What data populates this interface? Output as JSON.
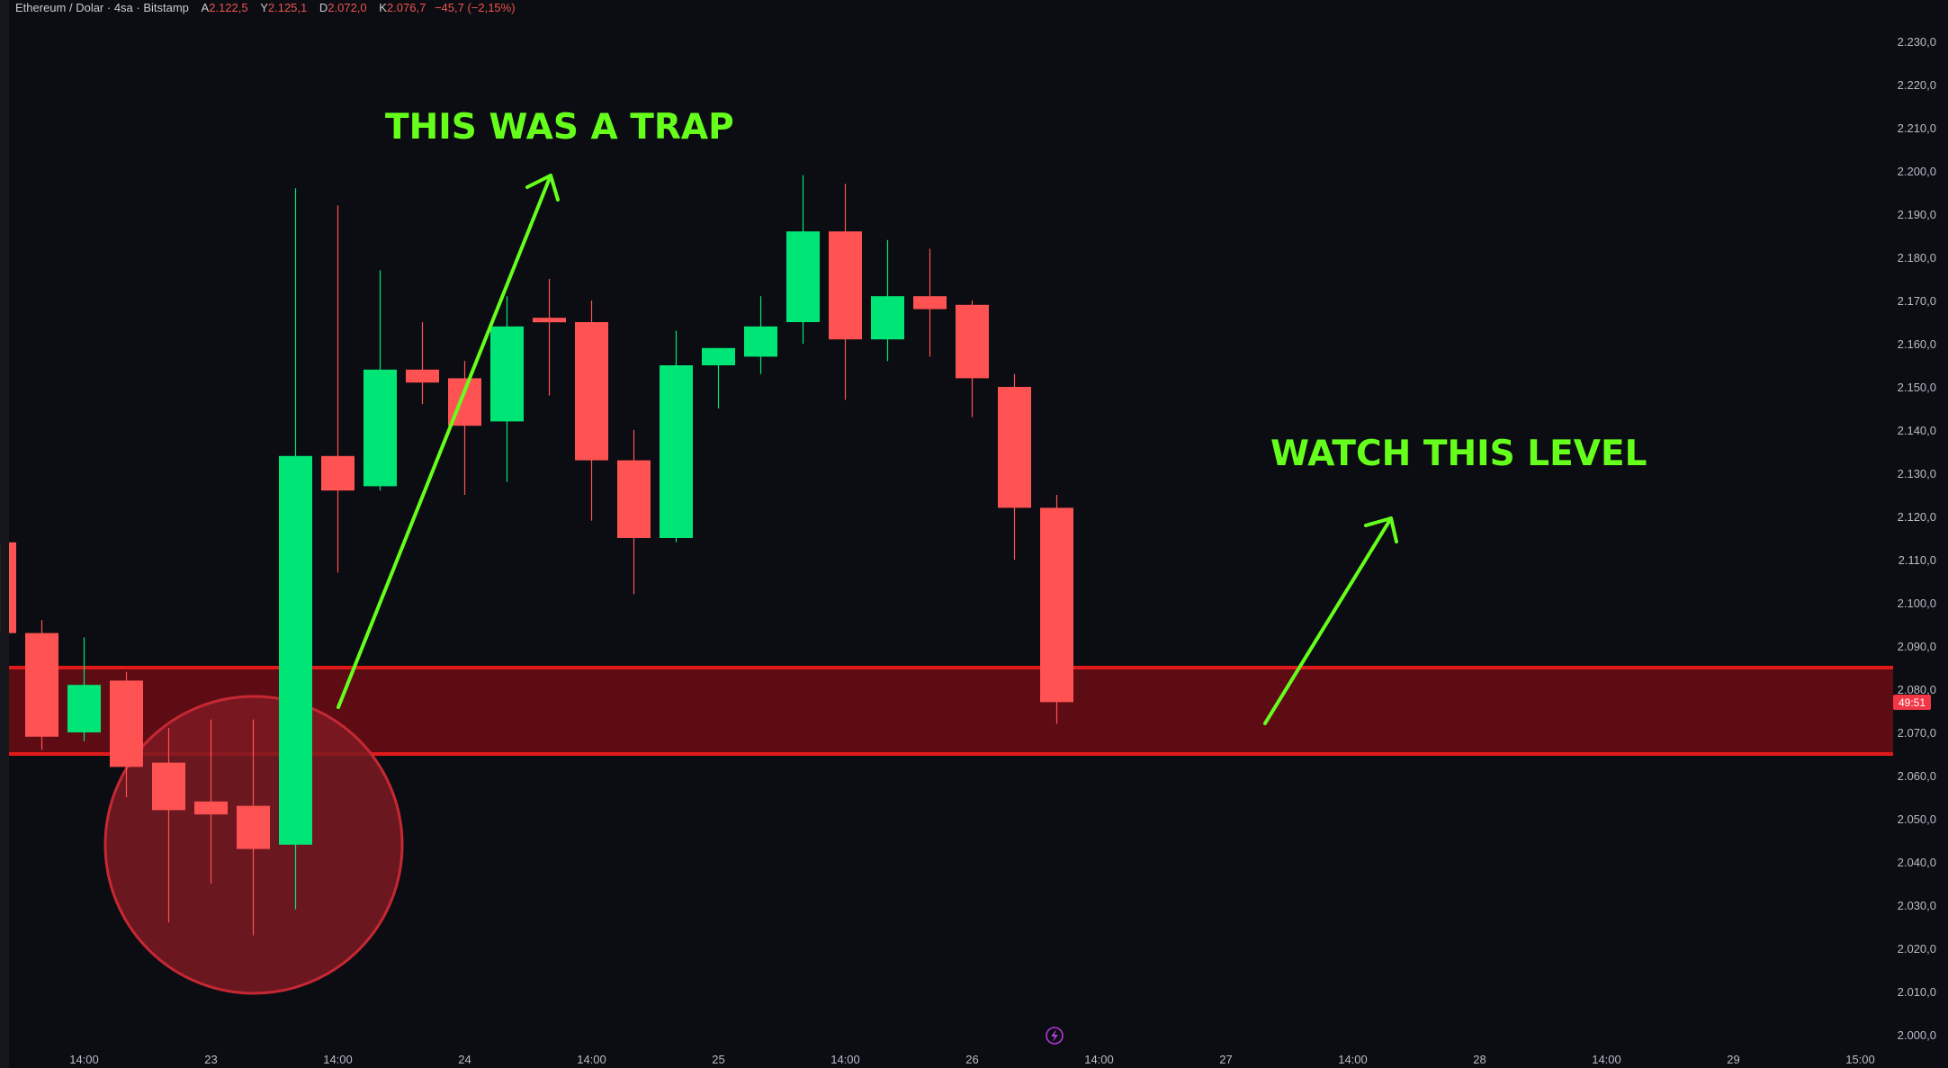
{
  "legend": {
    "symbol": "Ethereum / Dolar · 4sa · Bitstamp",
    "open_label": "A",
    "open": "2.122,5",
    "high_label": "Y",
    "high": "2.125,1",
    "low_label": "D",
    "low": "2.072,0",
    "close_label": "K",
    "close": "2.076,7",
    "change": "−45,7 (−2,15%)"
  },
  "price_badge": "49:51",
  "annotations": {
    "trap": "THIS WAS A TRAP",
    "watch": "WATCH THIS LEVEL"
  },
  "colors": {
    "up": "#00e676",
    "down": "#ff5252",
    "zone_fill": "#5e0c14",
    "zone_line": "#e01a1a",
    "annotation": "#66ff1c",
    "circle_fill": "#7c1a22",
    "circle_stroke": "#c62833",
    "badge": "#f23645",
    "energy_icon": "#b23ad7"
  },
  "chart_data": {
    "type": "candlestick",
    "symbol": "ETH/USD",
    "timeframe": "4h",
    "exchange": "Bitstamp",
    "ylim": [
      2000,
      2230
    ],
    "y_ticks": [
      "2.230,0",
      "2.220,0",
      "2.210,0",
      "2.200,0",
      "2.190,0",
      "2.180,0",
      "2.170,0",
      "2.160,0",
      "2.150,0",
      "2.140,0",
      "2.130,0",
      "2.120,0",
      "2.110,0",
      "2.100,0",
      "2.090,0",
      "2.080,0",
      "2.070,0",
      "2.060,0",
      "2.050,0",
      "2.040,0",
      "2.030,0",
      "2.020,0",
      "2.010,0",
      "2.000,0"
    ],
    "x_ticks": [
      {
        "label": "14:00",
        "bar": 1
      },
      {
        "label": "23",
        "bar": 4
      },
      {
        "label": "14:00",
        "bar": 7
      },
      {
        "label": "24",
        "bar": 10
      },
      {
        "label": "14:00",
        "bar": 13
      },
      {
        "label": "25",
        "bar": 16
      },
      {
        "label": "14:00",
        "bar": 19
      },
      {
        "label": "26",
        "bar": 22
      },
      {
        "label": "14:00",
        "bar": 25
      },
      {
        "label": "27",
        "bar": 28
      },
      {
        "label": "14:00",
        "bar": 31
      },
      {
        "label": "28",
        "bar": 34
      },
      {
        "label": "14:00",
        "bar": 37
      },
      {
        "label": "29",
        "bar": 40
      },
      {
        "label": "15:00",
        "bar": 43
      }
    ],
    "candles": [
      {
        "bar": -1,
        "open": 2114,
        "high": 2114,
        "low": 2093,
        "close": 2093
      },
      {
        "bar": 0,
        "open": 2093,
        "high": 2096,
        "low": 2066,
        "close": 2069
      },
      {
        "bar": 1,
        "open": 2070,
        "high": 2092,
        "low": 2068,
        "close": 2081
      },
      {
        "bar": 2,
        "open": 2082,
        "high": 2084,
        "low": 2055,
        "close": 2062
      },
      {
        "bar": 3,
        "open": 2063,
        "high": 2071,
        "low": 2026,
        "close": 2052
      },
      {
        "bar": 4,
        "open": 2054,
        "high": 2073,
        "low": 2035,
        "close": 2051
      },
      {
        "bar": 5,
        "open": 2053,
        "high": 2073,
        "low": 2023,
        "close": 2043
      },
      {
        "bar": 6,
        "open": 2044,
        "high": 2196,
        "low": 2029,
        "close": 2134
      },
      {
        "bar": 7,
        "open": 2134,
        "high": 2192,
        "low": 2107,
        "close": 2126
      },
      {
        "bar": 8,
        "open": 2127,
        "high": 2177,
        "low": 2126,
        "close": 2154
      },
      {
        "bar": 9,
        "open": 2154,
        "high": 2165,
        "low": 2146,
        "close": 2151
      },
      {
        "bar": 10,
        "open": 2152,
        "high": 2156,
        "low": 2125,
        "close": 2141
      },
      {
        "bar": 11,
        "open": 2142,
        "high": 2171,
        "low": 2128,
        "close": 2164
      },
      {
        "bar": 12,
        "open": 2166,
        "high": 2175,
        "low": 2148,
        "close": 2165
      },
      {
        "bar": 13,
        "open": 2165,
        "high": 2170,
        "low": 2119,
        "close": 2133
      },
      {
        "bar": 14,
        "open": 2133,
        "high": 2140,
        "low": 2102,
        "close": 2115
      },
      {
        "bar": 15,
        "open": 2115,
        "high": 2163,
        "low": 2114,
        "close": 2155
      },
      {
        "bar": 16,
        "open": 2155,
        "high": 2159,
        "low": 2145,
        "close": 2159
      },
      {
        "bar": 17,
        "open": 2157,
        "high": 2171,
        "low": 2153,
        "close": 2164
      },
      {
        "bar": 18,
        "open": 2165,
        "high": 2199,
        "low": 2160,
        "close": 2186
      },
      {
        "bar": 19,
        "open": 2186,
        "high": 2197,
        "low": 2147,
        "close": 2161
      },
      {
        "bar": 20,
        "open": 2161,
        "high": 2184,
        "low": 2156,
        "close": 2171
      },
      {
        "bar": 21,
        "open": 2171,
        "high": 2182,
        "low": 2157,
        "close": 2168
      },
      {
        "bar": 22,
        "open": 2169,
        "high": 2170,
        "low": 2143,
        "close": 2152
      },
      {
        "bar": 23,
        "open": 2150,
        "high": 2153,
        "low": 2110,
        "close": 2122
      },
      {
        "bar": 24,
        "open": 2122,
        "high": 2125,
        "low": 2072,
        "close": 2077
      }
    ],
    "zones": [
      {
        "type": "support",
        "from": 2065,
        "to": 2085
      }
    ],
    "current_price": 2077
  }
}
